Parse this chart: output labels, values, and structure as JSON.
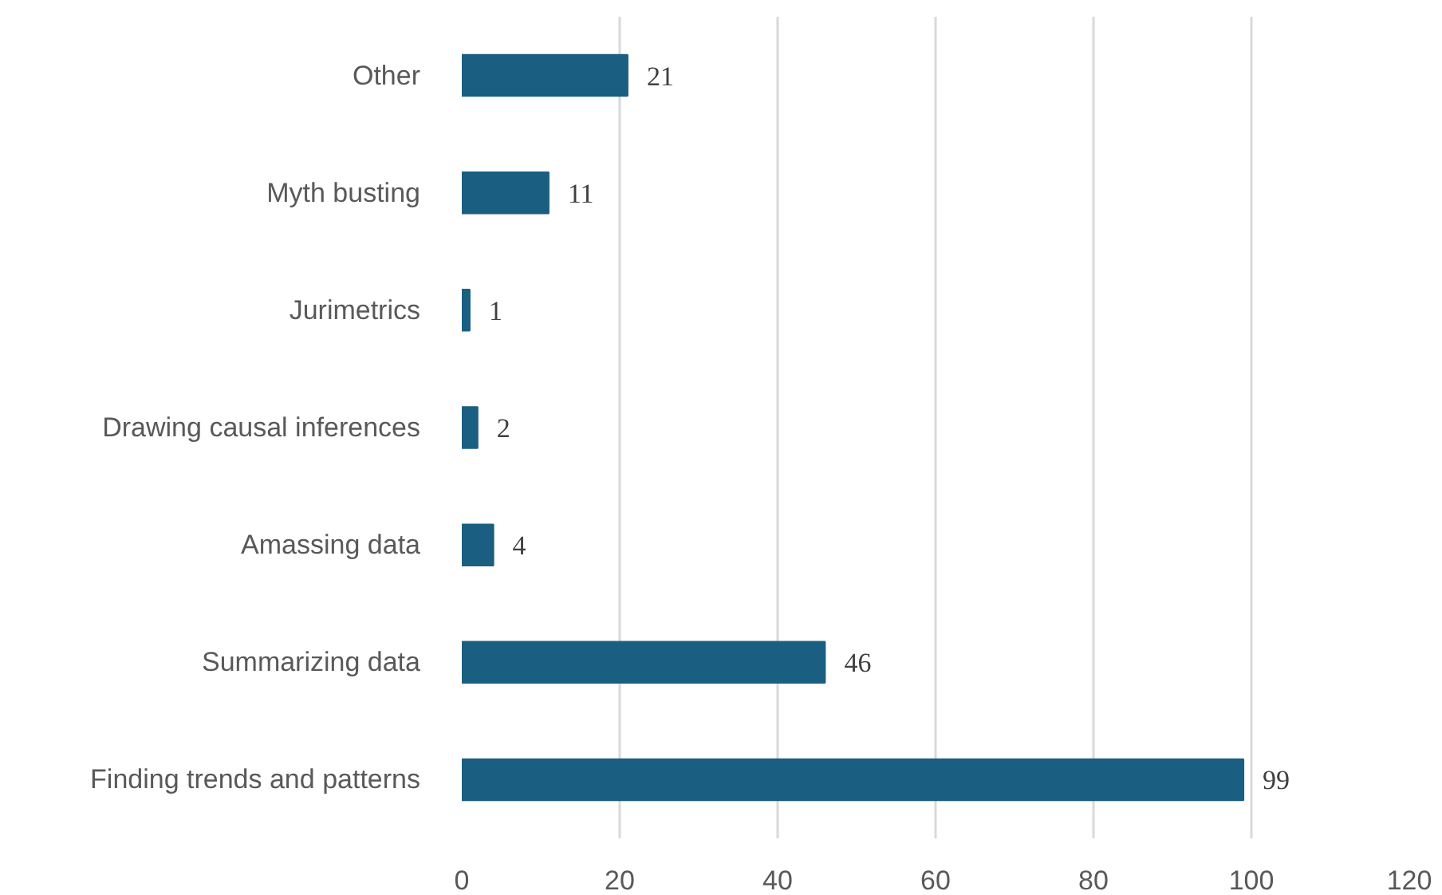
{
  "chart_data": {
    "type": "bar",
    "orientation": "horizontal",
    "categories": [
      "Other",
      "Myth busting",
      "Jurimetrics",
      "Drawing causal inferences",
      "Amassing data",
      "Summarizing data",
      "Finding trends and patterns"
    ],
    "values": [
      21,
      11,
      1,
      2,
      4,
      46,
      99
    ],
    "color": "#1a5f82",
    "xlim": [
      0,
      120
    ],
    "xticks": [
      0,
      20,
      40,
      60,
      80,
      100,
      120
    ],
    "grid": "x",
    "data_labels": true
  }
}
